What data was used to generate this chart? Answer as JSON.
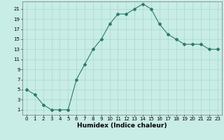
{
  "x": [
    0,
    1,
    2,
    3,
    4,
    5,
    6,
    7,
    8,
    9,
    10,
    11,
    12,
    13,
    14,
    15,
    16,
    17,
    18,
    19,
    20,
    21,
    22,
    23
  ],
  "y": [
    5,
    4,
    2,
    1,
    1,
    1,
    7,
    10,
    13,
    15,
    18,
    20,
    20,
    21,
    22,
    21,
    18,
    16,
    15,
    14,
    14,
    14,
    13,
    13
  ],
  "line_color": "#2d7a6e",
  "bg_color": "#c8ece6",
  "grid_color": "#a8d8d0",
  "xlabel": "Humidex (Indice chaleur)",
  "xlabel_weight": "bold",
  "ylim_min": 0,
  "ylim_max": 22,
  "xlim_min": -0.5,
  "xlim_max": 23.5,
  "yticks": [
    1,
    3,
    5,
    7,
    9,
    11,
    13,
    15,
    17,
    19,
    21
  ],
  "xticks": [
    0,
    1,
    2,
    3,
    4,
    5,
    6,
    7,
    8,
    9,
    10,
    11,
    12,
    13,
    14,
    15,
    16,
    17,
    18,
    19,
    20,
    21,
    22,
    23
  ],
  "marker": "D",
  "marker_size": 2.0,
  "line_width": 0.8,
  "axis_fontsize": 5.0,
  "xlabel_fontsize": 6.5
}
